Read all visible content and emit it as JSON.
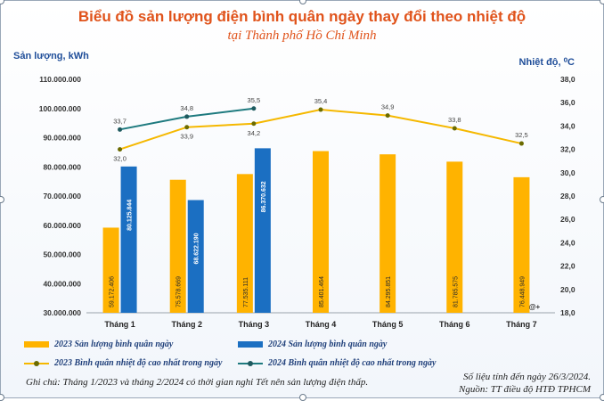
{
  "title": "Biểu đồ sản lượng điện bình quân ngày thay đổi theo nhiệt độ",
  "subtitle": "tại Thành phố Hồ Chí Minh",
  "ylabel_left": "Sản lượng, kWh",
  "ylabel_right": "Nhiệt độ, ⁰C",
  "watermark": "@+",
  "note": "Ghi chú: Tháng 1/2023 và tháng 2/2024 có thời gian nghỉ Tết nên sản lượng điện thấp.",
  "source_line1": "Số liệu tính đến ngày 26/3/2024.",
  "source_line2": "Nguồn: TT điều độ HTĐ TPHCM",
  "colors": {
    "bar_2023": "#ffb300",
    "bar_2024": "#1b6fc2",
    "line_2023": "#f5b800",
    "line_2024": "#1e7a7f",
    "title": "#e0531b",
    "axis_label": "#1f4e99"
  },
  "legend": [
    {
      "label": "2023 Sản lượng bình quân ngày",
      "kind": "bar",
      "color": "#ffb300"
    },
    {
      "label": "2024 Sản lượng bình quân ngày",
      "kind": "bar",
      "color": "#1b6fc2"
    },
    {
      "label": "2023 Bình quân nhiệt độ cao nhất trong ngày",
      "kind": "line",
      "color": "#f5b800"
    },
    {
      "label": "2024 Bình quân nhiệt độ cao nhất trong ngày",
      "kind": "line",
      "color": "#1e7a7f"
    }
  ],
  "chart_data": {
    "type": "bar",
    "categories": [
      "Tháng 1",
      "Tháng 2",
      "Tháng 3",
      "Tháng 4",
      "Tháng 5",
      "Tháng 6",
      "Tháng 7"
    ],
    "ylim_left": [
      30000000,
      110000000
    ],
    "ylim_right": [
      18.0,
      38.0
    ],
    "yticks_left": [
      "110.000.000",
      "100.000.000",
      "90.000.000",
      "80.000.000",
      "70.000.000",
      "60.000.000",
      "50.000.000",
      "40.000.000",
      "30.000.000"
    ],
    "yticks_right": [
      "38,0",
      "36,0",
      "34,0",
      "32,0",
      "30,0",
      "28,0",
      "26,0",
      "24,0",
      "22,0",
      "20,0",
      "18,0"
    ],
    "bar_series": [
      {
        "name": "2023 Sản lượng bình quân ngày",
        "values": [
          59172406,
          75578669,
          77535111,
          85401464,
          84295851,
          81785575,
          76448949
        ],
        "labels": [
          "59.172.406",
          "75.578.669",
          "77.535.111",
          "85.401.464",
          "84.295.851",
          "81.785.575",
          "76.448.949"
        ]
      },
      {
        "name": "2024 Sản lượng bình quân ngày",
        "values": [
          80125844,
          68622190,
          86370632,
          null,
          null,
          null,
          null
        ],
        "labels": [
          "80.125.844",
          "68.622.190",
          "86.370.632",
          null,
          null,
          null,
          null
        ]
      }
    ],
    "line_series": [
      {
        "name": "2023 Bình quân nhiệt độ cao nhất trong ngày",
        "values": [
          32.0,
          33.9,
          34.2,
          35.4,
          34.9,
          33.8,
          32.5
        ],
        "labels": [
          "32,0",
          "33,9",
          "34,2",
          "35,4",
          "34,9",
          "33,8",
          "32,5"
        ]
      },
      {
        "name": "2024 Bình quân nhiệt độ cao nhất trong ngày",
        "values": [
          33.7,
          34.8,
          35.5,
          null,
          null,
          null,
          null
        ],
        "labels": [
          "33,7",
          "34,8",
          "35,5",
          null,
          null,
          null,
          null
        ]
      }
    ],
    "grid": false,
    "legend_position": "bottom-left"
  }
}
